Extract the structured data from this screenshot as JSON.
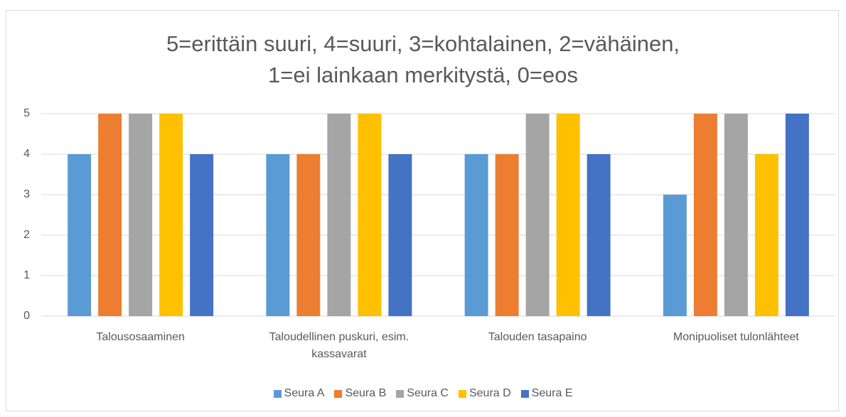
{
  "chart_data": {
    "type": "bar",
    "title": "5=erittäin suuri, 4=suuri, 3=kohtalainen, 2=vähäinen, 1=ei lainkaan merkitystä, 0=eos",
    "categories": [
      "Talousosaaminen",
      "Taloudellinen puskuri, esim. kassavarat",
      "Talouden tasapaino",
      "Monipuoliset tulonlähteet"
    ],
    "series": [
      {
        "name": "Seura A",
        "color": "#5b9bd5",
        "values": [
          4,
          4,
          4,
          3
        ]
      },
      {
        "name": "Seura B",
        "color": "#ed7d31",
        "values": [
          5,
          4,
          4,
          5
        ]
      },
      {
        "name": "Seura C",
        "color": "#a5a5a5",
        "values": [
          5,
          5,
          5,
          5
        ]
      },
      {
        "name": "Seura D",
        "color": "#ffc000",
        "values": [
          5,
          5,
          5,
          4
        ]
      },
      {
        "name": "Seura E",
        "color": "#4472c4",
        "values": [
          4,
          4,
          4,
          5
        ]
      }
    ],
    "ylim": [
      0,
      5
    ],
    "yticks": [
      0,
      1,
      2,
      3,
      4,
      5
    ],
    "grid": true,
    "legend": "bottom"
  }
}
